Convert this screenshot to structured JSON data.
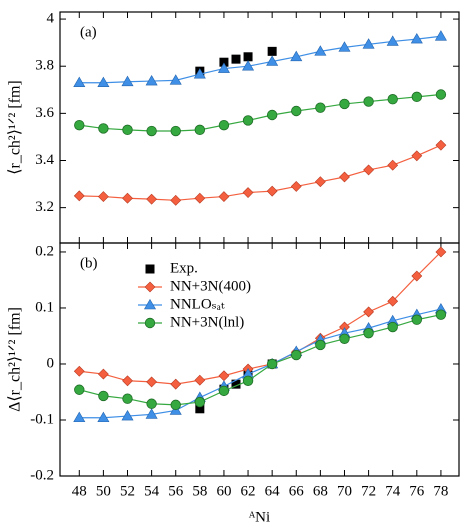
{
  "chart_data": [
    {
      "type": "line",
      "label": "(a)",
      "ylabel": "⟨r_ch²⟩¹ᐟ² [fm]",
      "xlim": [
        46.4,
        79.5
      ],
      "ylim": [
        3.05,
        4.03
      ],
      "yticks": [
        3.2,
        3.4,
        3.6,
        3.8,
        4
      ],
      "series": [
        {
          "name": "Exp.",
          "color": "#000000",
          "marker": "square",
          "line": false,
          "x": [
            58,
            60,
            61,
            62,
            64
          ],
          "values": [
            3.779,
            3.817,
            3.83,
            3.84,
            3.863
          ]
        },
        {
          "name": "NN+3N(400)",
          "color": "#f4603f",
          "marker": "diamond",
          "line": true,
          "x": [
            48,
            50,
            52,
            54,
            56,
            58,
            60,
            62,
            64,
            66,
            68,
            70,
            72,
            74,
            76,
            78
          ],
          "values": [
            3.25,
            3.247,
            3.24,
            3.236,
            3.231,
            3.24,
            3.247,
            3.264,
            3.27,
            3.29,
            3.31,
            3.33,
            3.36,
            3.38,
            3.42,
            3.465
          ]
        },
        {
          "name": "NNLOₛₐₜ",
          "color": "#3f8fe6",
          "marker": "triangle",
          "line": true,
          "x": [
            48,
            50,
            52,
            54,
            56,
            58,
            60,
            62,
            64,
            66,
            68,
            70,
            72,
            74,
            76,
            78
          ],
          "values": [
            3.73,
            3.73,
            3.734,
            3.737,
            3.74,
            3.766,
            3.79,
            3.8,
            3.82,
            3.84,
            3.863,
            3.88,
            3.893,
            3.905,
            3.915,
            3.927
          ]
        },
        {
          "name": "NN+3N(lnl)",
          "color": "#36a840",
          "marker": "circle",
          "line": true,
          "x": [
            48,
            50,
            52,
            54,
            56,
            58,
            60,
            62,
            64,
            66,
            68,
            70,
            72,
            74,
            76,
            78
          ],
          "values": [
            3.55,
            3.536,
            3.53,
            3.525,
            3.525,
            3.53,
            3.55,
            3.57,
            3.593,
            3.61,
            3.624,
            3.64,
            3.65,
            3.66,
            3.67,
            3.68
          ]
        }
      ]
    },
    {
      "type": "line",
      "label": "(b)",
      "ylabel": "Δ⟨r_ch²⟩¹ᐟ² [fm]",
      "xlabel": "ᴬNi",
      "xlim": [
        46.4,
        79.5
      ],
      "xticks": [
        48,
        50,
        52,
        54,
        56,
        58,
        60,
        62,
        64,
        66,
        68,
        70,
        72,
        74,
        76,
        78
      ],
      "ylim": [
        -0.2,
        0.216
      ],
      "yticks": [
        -0.2,
        -0.1,
        0,
        0.1,
        0.2
      ],
      "legend": "upper left",
      "series": [
        {
          "name": "Exp.",
          "color": "#000000",
          "marker": "square",
          "line": false,
          "x": [
            58,
            60,
            61,
            62,
            64
          ],
          "values": [
            -0.08,
            -0.045,
            -0.036,
            -0.02,
            0
          ]
        },
        {
          "name": "NN+3N(400)",
          "color": "#f4603f",
          "marker": "diamond",
          "line": true,
          "x": [
            48,
            50,
            52,
            54,
            56,
            58,
            60,
            62,
            64,
            66,
            68,
            70,
            72,
            74,
            76,
            78
          ],
          "values": [
            -0.013,
            -0.018,
            -0.03,
            -0.032,
            -0.036,
            -0.029,
            -0.021,
            -0.009,
            0,
            0.021,
            0.046,
            0.066,
            0.093,
            0.112,
            0.157,
            0.2
          ]
        },
        {
          "name": "NNLOₛₐₜ",
          "color": "#3f8fe6",
          "marker": "triangle",
          "line": true,
          "x": [
            48,
            50,
            52,
            54,
            56,
            58,
            60,
            62,
            64,
            66,
            68,
            70,
            72,
            74,
            76,
            78
          ],
          "values": [
            -0.096,
            -0.096,
            -0.093,
            -0.09,
            -0.083,
            -0.06,
            -0.04,
            -0.018,
            0,
            0.022,
            0.043,
            0.055,
            0.064,
            0.077,
            0.088,
            0.098
          ]
        },
        {
          "name": "NN+3N(lnl)",
          "color": "#36a840",
          "marker": "circle",
          "line": true,
          "x": [
            48,
            50,
            52,
            54,
            56,
            58,
            60,
            62,
            64,
            66,
            68,
            70,
            72,
            74,
            76,
            78
          ],
          "values": [
            -0.046,
            -0.057,
            -0.062,
            -0.071,
            -0.073,
            -0.068,
            -0.048,
            -0.03,
            0,
            0.016,
            0.034,
            0.045,
            0.055,
            0.066,
            0.079,
            0.088
          ]
        }
      ]
    }
  ]
}
